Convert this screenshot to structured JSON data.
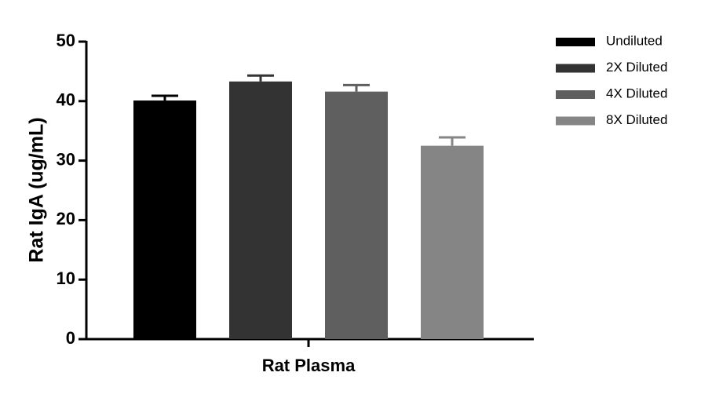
{
  "chart_data": {
    "type": "bar",
    "y_label": "Rat IgA (ug/mL)",
    "categories": [
      "Rat Plasma"
    ],
    "series": [
      {
        "name": "Undiluted",
        "color": "#000000",
        "values": [
          40.1
        ],
        "errors": [
          0.8
        ]
      },
      {
        "name": "2X Diluted",
        "color": "#333333",
        "values": [
          43.3
        ],
        "errors": [
          1.0
        ]
      },
      {
        "name": "4X Diluted",
        "color": "#5f5f5f",
        "values": [
          41.6
        ],
        "errors": [
          1.1
        ]
      },
      {
        "name": "8X Diluted",
        "color": "#858585",
        "values": [
          32.5
        ],
        "errors": [
          1.4
        ]
      }
    ],
    "ylim": [
      0,
      50
    ],
    "yticks": [
      0,
      10,
      20,
      30,
      40,
      50
    ],
    "legend": "right"
  }
}
